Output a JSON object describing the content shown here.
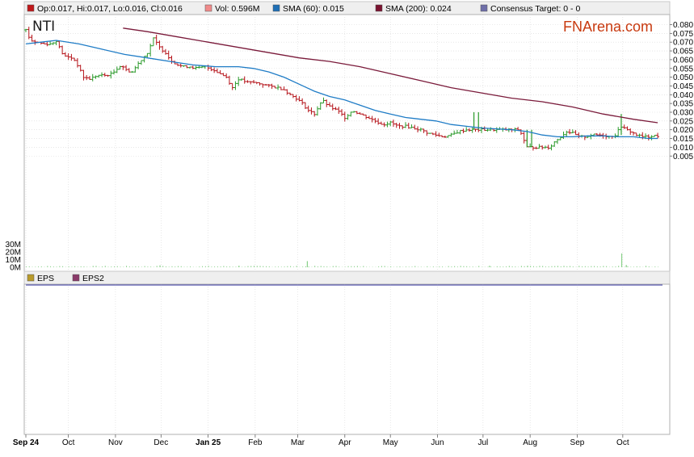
{
  "header": {
    "items": [
      {
        "color": "#c0181a",
        "text": "Op:0.017, Hi:0.017, Lo:0.016, Cl:0.016"
      },
      {
        "color": "#f08a8a",
        "text": "Vol: 0.596M"
      },
      {
        "color": "#1f6fb5",
        "text": "SMA (60): 0.015"
      },
      {
        "color": "#7a1330",
        "text": "SMA (200): 0.024"
      },
      {
        "color": "#6e6ea8",
        "text": "Consensus Target: 0 - 0"
      }
    ]
  },
  "chart_data": {
    "type": "candlestick",
    "ticker": "NTI",
    "brand": "FNArena.com",
    "ylim": [
      0.005,
      0.082
    ],
    "y_ticks": [
      "0.080",
      "0.075",
      "0.070",
      "0.065",
      "0.060",
      "0.055",
      "0.050",
      "0.045",
      "0.040",
      "0.035",
      "0.030",
      "0.025",
      "0.020",
      "0.015",
      "0.010",
      "0.005"
    ],
    "volume_ticks": [
      "30M",
      "20M",
      "10M",
      "0M"
    ],
    "volume_ylim": [
      0,
      33
    ],
    "x_ticks": [
      {
        "label": "Sep 24",
        "bold": true
      },
      {
        "label": "Oct",
        "bold": false
      },
      {
        "label": "Nov",
        "bold": false
      },
      {
        "label": "Dec",
        "bold": false
      },
      {
        "label": "Jan 25",
        "bold": true
      },
      {
        "label": "Feb",
        "bold": false
      },
      {
        "label": "Mar",
        "bold": false
      },
      {
        "label": "Apr",
        "bold": false
      },
      {
        "label": "May",
        "bold": false
      },
      {
        "label": "Jun",
        "bold": false
      },
      {
        "label": "Jul",
        "bold": false
      },
      {
        "label": "Aug",
        "bold": false
      },
      {
        "label": "Sep",
        "bold": false
      },
      {
        "label": "Oct",
        "bold": false
      }
    ],
    "x_tick_day": [
      0,
      28,
      59,
      89,
      120,
      151,
      179,
      210,
      240,
      271,
      301,
      332,
      363,
      393
    ],
    "close_path": [
      [
        0,
        0.077
      ],
      [
        3,
        0.071
      ],
      [
        7,
        0.07
      ],
      [
        12,
        0.069
      ],
      [
        17,
        0.069
      ],
      [
        20,
        0.071
      ],
      [
        22,
        0.067
      ],
      [
        25,
        0.062
      ],
      [
        30,
        0.061
      ],
      [
        33,
        0.059
      ],
      [
        35,
        0.055
      ],
      [
        38,
        0.05
      ],
      [
        42,
        0.049
      ],
      [
        47,
        0.051
      ],
      [
        52,
        0.051
      ],
      [
        57,
        0.052
      ],
      [
        60,
        0.055
      ],
      [
        63,
        0.057
      ],
      [
        66,
        0.054
      ],
      [
        70,
        0.053
      ],
      [
        75,
        0.059
      ],
      [
        80,
        0.064
      ],
      [
        84,
        0.072
      ],
      [
        88,
        0.067
      ],
      [
        92,
        0.064
      ],
      [
        95,
        0.06
      ],
      [
        100,
        0.057
      ],
      [
        104,
        0.056
      ],
      [
        108,
        0.056
      ],
      [
        113,
        0.055
      ],
      [
        118,
        0.056
      ],
      [
        124,
        0.054
      ],
      [
        128,
        0.052
      ],
      [
        132,
        0.05
      ],
      [
        136,
        0.044
      ],
      [
        140,
        0.049
      ],
      [
        146,
        0.047
      ],
      [
        150,
        0.047
      ],
      [
        156,
        0.046
      ],
      [
        160,
        0.045
      ],
      [
        166,
        0.044
      ],
      [
        170,
        0.043
      ],
      [
        174,
        0.04
      ],
      [
        178,
        0.038
      ],
      [
        182,
        0.035
      ],
      [
        186,
        0.031
      ],
      [
        190,
        0.029
      ],
      [
        195,
        0.037
      ],
      [
        200,
        0.033
      ],
      [
        205,
        0.031
      ],
      [
        210,
        0.027
      ],
      [
        215,
        0.031
      ],
      [
        220,
        0.029
      ],
      [
        225,
        0.027
      ],
      [
        230,
        0.025
      ],
      [
        235,
        0.023
      ],
      [
        240,
        0.024
      ],
      [
        245,
        0.022
      ],
      [
        250,
        0.022
      ],
      [
        255,
        0.021
      ],
      [
        260,
        0.02
      ],
      [
        265,
        0.018
      ],
      [
        270,
        0.017
      ],
      [
        275,
        0.016
      ],
      [
        280,
        0.017
      ],
      [
        285,
        0.019
      ],
      [
        290,
        0.02
      ],
      [
        295,
        0.02
      ],
      [
        300,
        0.02
      ],
      [
        305,
        0.02
      ],
      [
        310,
        0.02
      ],
      [
        315,
        0.02
      ],
      [
        320,
        0.02
      ],
      [
        325,
        0.02
      ],
      [
        330,
        0.01
      ],
      [
        335,
        0.01
      ],
      [
        340,
        0.01
      ],
      [
        345,
        0.01
      ],
      [
        348,
        0.013
      ],
      [
        352,
        0.016
      ],
      [
        356,
        0.019
      ],
      [
        360,
        0.018
      ],
      [
        364,
        0.016
      ],
      [
        368,
        0.016
      ],
      [
        372,
        0.017
      ],
      [
        376,
        0.017
      ],
      [
        380,
        0.017
      ],
      [
        384,
        0.016
      ],
      [
        388,
        0.017
      ],
      [
        392,
        0.022
      ],
      [
        395,
        0.02
      ],
      [
        398,
        0.019
      ],
      [
        402,
        0.017
      ],
      [
        406,
        0.016
      ],
      [
        410,
        0.016
      ],
      [
        413,
        0.017
      ],
      [
        416,
        0.016
      ]
    ],
    "sma60": [
      [
        0,
        0.069
      ],
      [
        10,
        0.07
      ],
      [
        20,
        0.071
      ],
      [
        35,
        0.069
      ],
      [
        50,
        0.066
      ],
      [
        65,
        0.063
      ],
      [
        80,
        0.061
      ],
      [
        95,
        0.059
      ],
      [
        110,
        0.057
      ],
      [
        125,
        0.056
      ],
      [
        140,
        0.056
      ],
      [
        150,
        0.055
      ],
      [
        160,
        0.053
      ],
      [
        170,
        0.05
      ],
      [
        180,
        0.046
      ],
      [
        190,
        0.042
      ],
      [
        200,
        0.039
      ],
      [
        210,
        0.037
      ],
      [
        220,
        0.034
      ],
      [
        230,
        0.031
      ],
      [
        240,
        0.029
      ],
      [
        250,
        0.027
      ],
      [
        260,
        0.026
      ],
      [
        270,
        0.025
      ],
      [
        280,
        0.023
      ],
      [
        290,
        0.022
      ],
      [
        300,
        0.021
      ],
      [
        310,
        0.0205
      ],
      [
        320,
        0.02
      ],
      [
        330,
        0.019
      ],
      [
        340,
        0.017
      ],
      [
        350,
        0.016
      ],
      [
        360,
        0.016
      ],
      [
        370,
        0.0165
      ],
      [
        380,
        0.0165
      ],
      [
        390,
        0.016
      ],
      [
        400,
        0.016
      ],
      [
        410,
        0.015
      ],
      [
        416,
        0.015
      ]
    ],
    "sma200": [
      [
        64,
        0.078
      ],
      [
        80,
        0.076
      ],
      [
        100,
        0.073
      ],
      [
        120,
        0.07
      ],
      [
        140,
        0.067
      ],
      [
        160,
        0.064
      ],
      [
        180,
        0.061
      ],
      [
        200,
        0.059
      ],
      [
        220,
        0.056
      ],
      [
        240,
        0.052
      ],
      [
        260,
        0.048
      ],
      [
        280,
        0.044
      ],
      [
        300,
        0.041
      ],
      [
        320,
        0.038
      ],
      [
        340,
        0.036
      ],
      [
        360,
        0.033
      ],
      [
        380,
        0.029
      ],
      [
        400,
        0.026
      ],
      [
        416,
        0.024
      ]
    ],
    "volume_spikes": [
      [
        185,
        8.0
      ],
      [
        392,
        18.0
      ],
      [
        88,
        2.5
      ],
      [
        140,
        2.0
      ],
      [
        305,
        2.0
      ],
      [
        330,
        2.0
      ],
      [
        395,
        3.0
      ]
    ],
    "lower_legend": [
      {
        "color": "#b89a2a",
        "text": "EPS"
      },
      {
        "color": "#8a3a6a",
        "text": "EPS2"
      }
    ],
    "colors": {
      "up": "#2a9a2a",
      "down": "#b5131a",
      "sma60": "#1f7cc6",
      "sma200": "#7a1a3a",
      "grid": "#d8d8d8",
      "volume": "#88d088",
      "eps_line": "#5a5ab0"
    }
  }
}
